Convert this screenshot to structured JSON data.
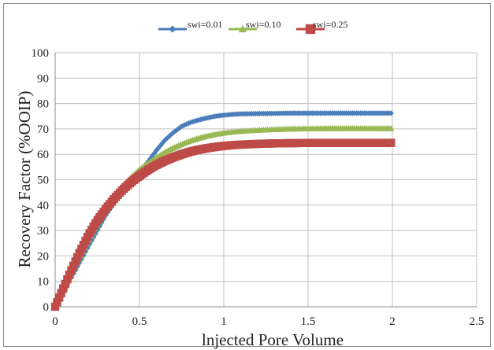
{
  "chart_data": {
    "type": "line",
    "title": "",
    "xlabel": "lnjected Pore Volume",
    "ylabel": "Recovery Factor (%OOIP)",
    "xlim": [
      0,
      2.5
    ],
    "ylim": [
      0,
      100
    ],
    "x_ticks": [
      "0",
      "0.5",
      "1",
      "1.5",
      "2",
      "2.5"
    ],
    "y_ticks": [
      "0",
      "10",
      "20",
      "30",
      "40",
      "50",
      "60",
      "70",
      "80",
      "90",
      "100"
    ],
    "grid": true,
    "legend_position": "top",
    "series": [
      {
        "name": "swi=0.01",
        "color": "#4a7ebb",
        "marker": "diamond",
        "x": [
          0,
          0.05,
          0.1,
          0.15,
          0.2,
          0.25,
          0.3,
          0.35,
          0.4,
          0.45,
          0.5,
          0.55,
          0.6,
          0.65,
          0.7,
          0.75,
          0.8,
          0.85,
          0.9,
          0.95,
          1.0,
          1.05,
          1.1,
          1.2,
          1.3,
          1.4,
          1.5,
          1.6,
          1.7,
          1.8,
          1.9,
          2.0
        ],
        "y": [
          0,
          6,
          12,
          18,
          24,
          30,
          36,
          41,
          45.5,
          49.5,
          53,
          57,
          61.5,
          65.5,
          68.5,
          71,
          72.5,
          73.5,
          74.3,
          75,
          75.4,
          75.7,
          75.9,
          76,
          76.1,
          76.2,
          76.2,
          76.2,
          76.2,
          76.2,
          76.2,
          76.2
        ]
      },
      {
        "name": "swi=0.10",
        "color": "#98b954",
        "marker": "triangle",
        "x": [
          0,
          0.05,
          0.1,
          0.15,
          0.2,
          0.25,
          0.3,
          0.35,
          0.4,
          0.45,
          0.5,
          0.55,
          0.6,
          0.65,
          0.7,
          0.75,
          0.8,
          0.85,
          0.9,
          0.95,
          1.0,
          1.05,
          1.1,
          1.2,
          1.3,
          1.4,
          1.5,
          1.6,
          1.7,
          1.8,
          1.9,
          2.0
        ],
        "y": [
          0,
          6.5,
          13,
          19.5,
          26,
          32,
          38,
          43,
          47.5,
          51,
          54,
          56.5,
          58.7,
          60.8,
          62.5,
          64,
          65.3,
          66.3,
          67.2,
          67.9,
          68.4,
          68.8,
          69.1,
          69.5,
          69.8,
          70,
          70.1,
          70.2,
          70.2,
          70.2,
          70.2,
          70.2
        ]
      },
      {
        "name": "swi=0.25",
        "color": "#be4b48",
        "marker": "square",
        "x": [
          0,
          0.05,
          0.1,
          0.15,
          0.2,
          0.25,
          0.3,
          0.35,
          0.4,
          0.45,
          0.5,
          0.55,
          0.6,
          0.65,
          0.7,
          0.75,
          0.8,
          0.85,
          0.9,
          0.95,
          1.0,
          1.05,
          1.1,
          1.2,
          1.3,
          1.4,
          1.5,
          1.6,
          1.7,
          1.8,
          1.9,
          2.0
        ],
        "y": [
          0,
          7.5,
          15,
          22,
          28.5,
          34,
          38.5,
          42.5,
          46,
          49,
          51.5,
          53.8,
          55.8,
          57.4,
          58.8,
          60,
          61,
          61.8,
          62.4,
          62.9,
          63.3,
          63.6,
          63.8,
          64.1,
          64.3,
          64.4,
          64.5,
          64.5,
          64.5,
          64.5,
          64.5,
          64.5
        ]
      }
    ]
  }
}
